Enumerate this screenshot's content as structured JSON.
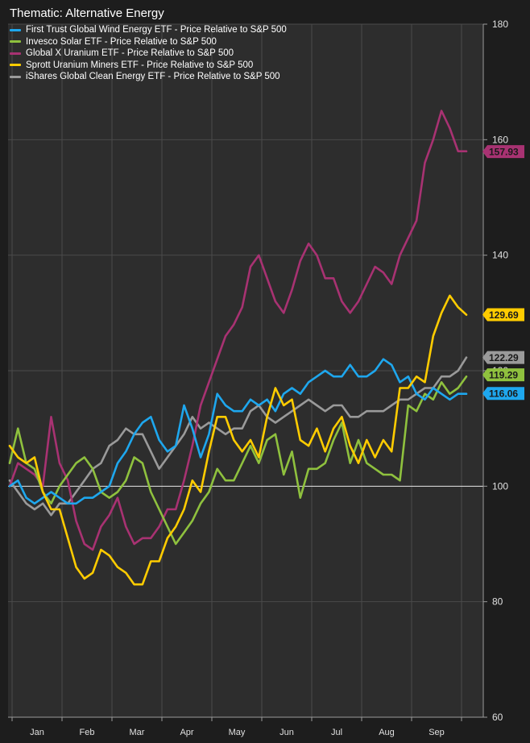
{
  "chart_data": {
    "type": "line",
    "title": "Thematic: Alternative Energy",
    "xlabel": "",
    "ylabel": "",
    "ylim": [
      60,
      180
    ],
    "yticks": [
      60,
      80,
      100,
      120,
      140,
      160,
      180
    ],
    "xticks": [
      "Jan",
      "Feb",
      "Mar",
      "Apr",
      "May",
      "Jun",
      "Jul",
      "Aug",
      "Sep"
    ],
    "reference_line": 100,
    "legend_position": "top-left",
    "series": [
      {
        "name": "First Trust Global Wind Energy ETF - Price Relative to S&P 500",
        "color": "#1ea7ee",
        "last_value": "116.06",
        "values": [
          100,
          101,
          98,
          97,
          98,
          99,
          98,
          97,
          97,
          98,
          98,
          99,
          100,
          104,
          106,
          109,
          111,
          112,
          108,
          106,
          107,
          114,
          110,
          105,
          109,
          116,
          114,
          113,
          113,
          115,
          114,
          115,
          113,
          116,
          117,
          116,
          118,
          119,
          120,
          119,
          119,
          121,
          119,
          119,
          120,
          122,
          121,
          118,
          119,
          116,
          115,
          117,
          116,
          115,
          116,
          116
        ]
      },
      {
        "name": "Invesco Solar ETF - Price Relative to S&P 500",
        "color": "#8fc13e",
        "last_value": "119.29",
        "values": [
          104,
          110,
          104,
          103,
          99,
          97,
          100,
          102,
          104,
          105,
          103,
          99,
          98,
          99,
          101,
          105,
          104,
          99,
          96,
          93,
          90,
          92,
          94,
          97,
          99,
          103,
          101,
          101,
          104,
          107,
          104,
          108,
          109,
          102,
          106,
          98,
          103,
          103,
          104,
          108,
          111,
          104,
          108,
          104,
          103,
          102,
          102,
          101,
          114,
          113,
          116,
          115,
          118,
          116,
          117,
          119
        ]
      },
      {
        "name": "Global X Uranium ETF - Price Relative to S&P 500",
        "color": "#a83272",
        "last_value": "157.93",
        "values": [
          100,
          104,
          103,
          102,
          100,
          112,
          104,
          101,
          94,
          90,
          89,
          93,
          95,
          98,
          93,
          90,
          91,
          91,
          93,
          96,
          96,
          101,
          107,
          114,
          118,
          122,
          126,
          128,
          131,
          138,
          140,
          136,
          132,
          130,
          134,
          139,
          142,
          140,
          136,
          136,
          132,
          130,
          132,
          135,
          138,
          137,
          135,
          140,
          143,
          146,
          156,
          160,
          165,
          162,
          158,
          158
        ]
      },
      {
        "name": "Sprott Uranium Miners ETF - Price Relative to S&P 500",
        "color": "#ffcc00",
        "last_value": "129.69",
        "values": [
          107,
          105,
          104,
          105,
          99,
          96,
          96,
          91,
          86,
          84,
          85,
          89,
          88,
          86,
          85,
          83,
          83,
          87,
          87,
          91,
          93,
          96,
          101,
          99,
          106,
          112,
          112,
          108,
          106,
          108,
          105,
          112,
          117,
          114,
          115,
          108,
          107,
          110,
          106,
          110,
          112,
          107,
          104,
          108,
          105,
          108,
          106,
          117,
          117,
          119,
          118,
          126,
          130,
          133,
          131,
          129.69
        ]
      },
      {
        "name": "iShares Global Clean Energy ETF - Price Relative to S&P 500",
        "color": "#9a9a9a",
        "last_value": "122.29",
        "values": [
          101,
          99,
          97,
          96,
          97,
          95,
          97,
          97,
          99,
          101,
          103,
          104,
          107,
          108,
          110,
          109,
          109,
          106,
          103,
          105,
          107,
          109,
          112,
          110,
          111,
          110,
          109,
          110,
          110,
          113,
          114,
          112,
          111,
          112,
          113,
          114,
          115,
          114,
          113,
          114,
          114,
          112,
          112,
          113,
          113,
          113,
          114,
          115,
          115,
          116,
          117,
          117,
          119,
          119,
          120,
          122.29
        ]
      }
    ]
  }
}
